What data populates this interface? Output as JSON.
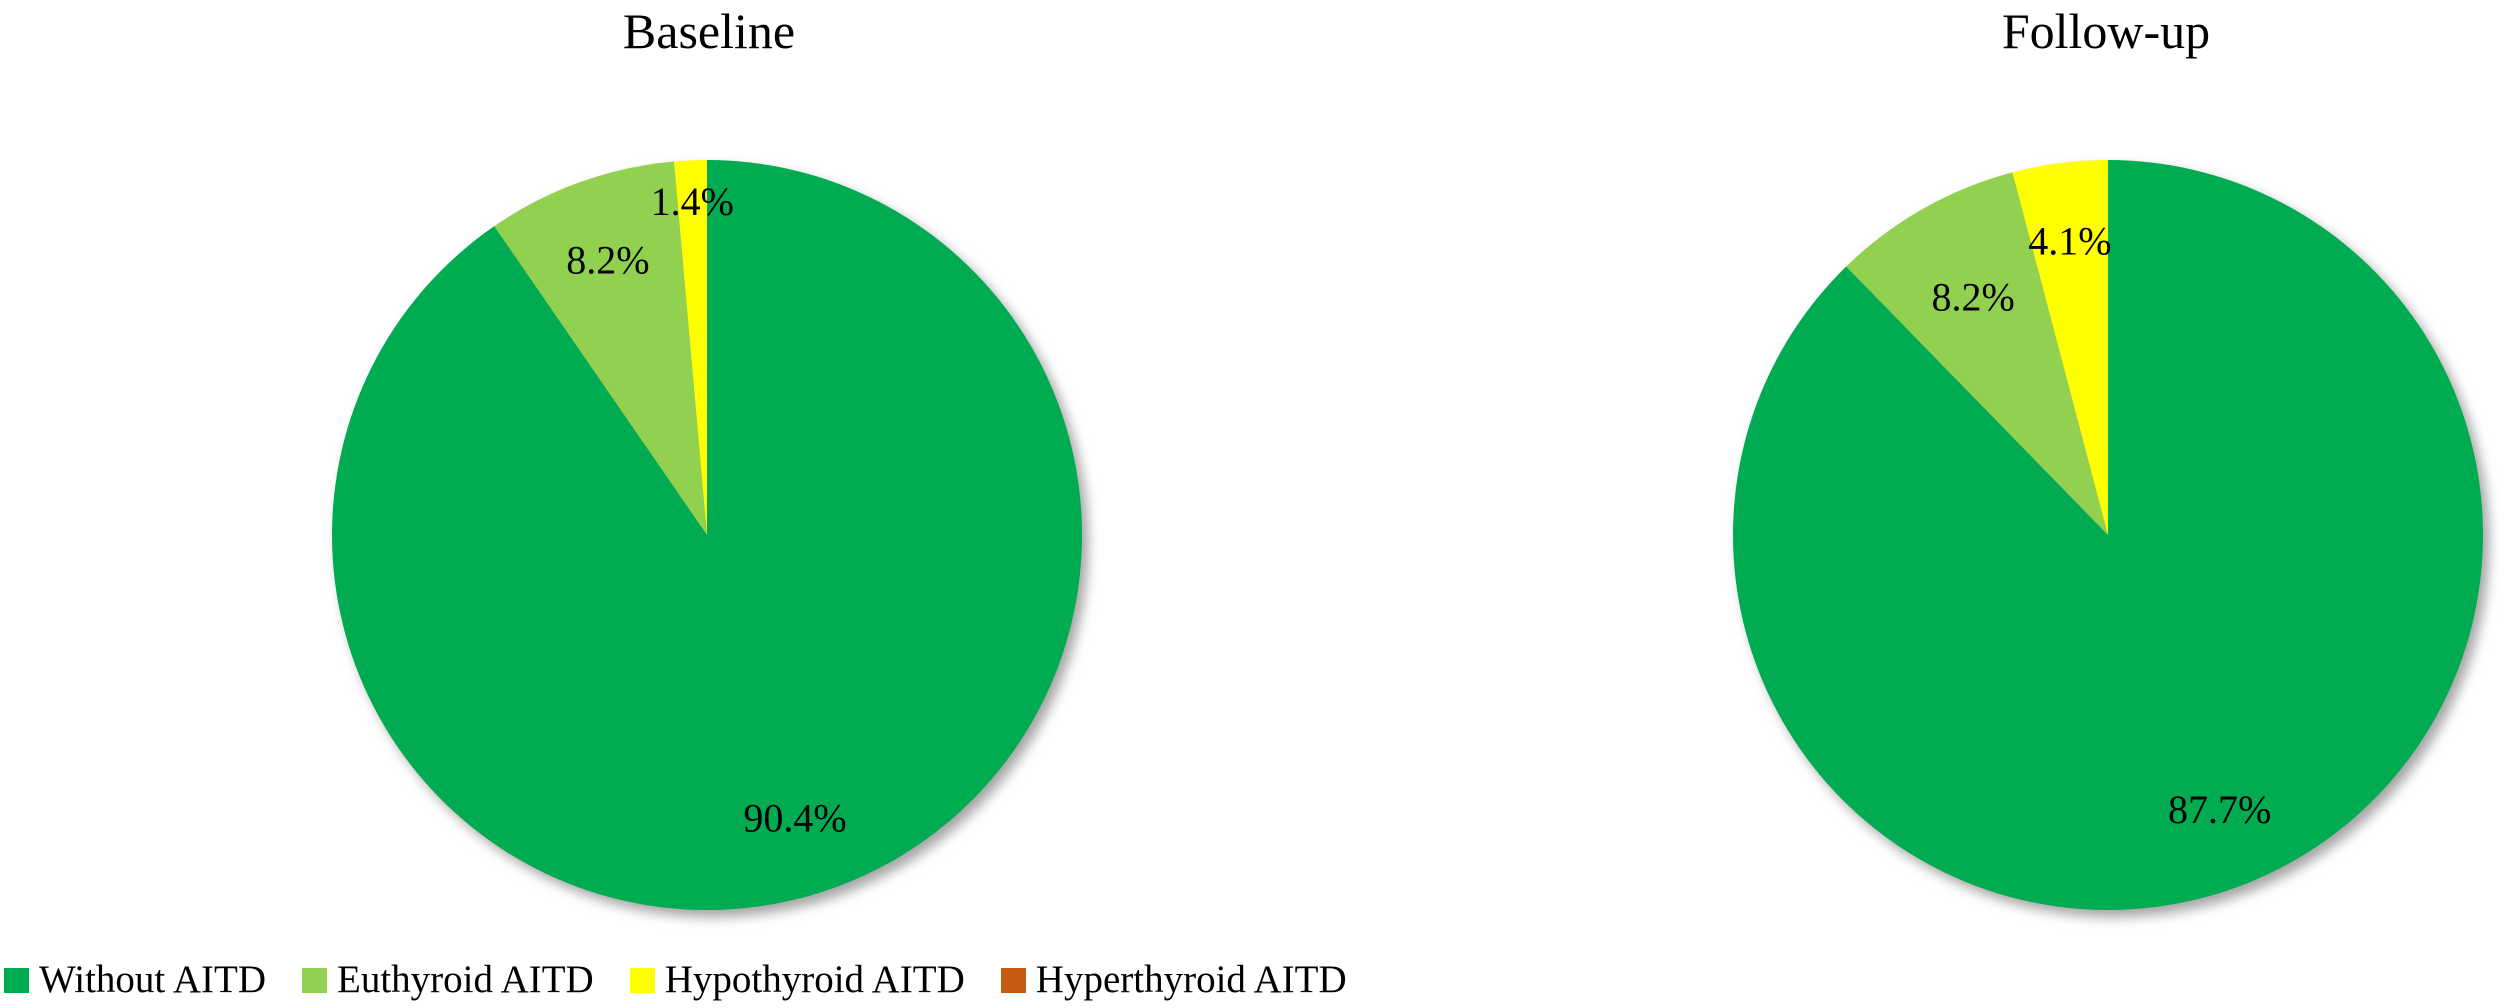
{
  "figure": {
    "background": "#ffffff",
    "text_color": "#000000"
  },
  "chart_data": [
    {
      "type": "pie",
      "title": "Baseline",
      "categories": [
        "Without AITD",
        "Euthyroid AITD",
        "Hypothyroid AITD",
        "Hyperthyroid AITD"
      ],
      "values": [
        90.4,
        8.2,
        1.4,
        0
      ],
      "labels": [
        "90.4%",
        "8.2%",
        "1.4%",
        ""
      ],
      "colors": [
        "#00AB51",
        "#92D050",
        "#FFFF00",
        "#C55A11"
      ],
      "start_angle_deg": 0,
      "direction": "clockwise",
      "label_radius_frac": [
        0.79,
        0.78,
        0.89,
        0.78
      ],
      "legend_position": "bottom-left",
      "grid": false
    },
    {
      "type": "pie",
      "title": "Follow-up",
      "categories": [
        "Without AITD",
        "Euthyroid AITD",
        "Hypothyroid AITD",
        "Hyperthyroid AITD"
      ],
      "values": [
        87.7,
        8.2,
        4.1,
        0
      ],
      "labels": [
        "87.7%",
        "8.2%",
        "4.1%",
        ""
      ],
      "colors": [
        "#00AB51",
        "#92D050",
        "#FFFF00",
        "#C55A11"
      ],
      "start_angle_deg": 0,
      "direction": "clockwise",
      "label_radius_frac": [
        0.79,
        0.73,
        0.79,
        0.78
      ],
      "legend_position": "bottom-left",
      "grid": false
    }
  ],
  "legend": {
    "items": [
      {
        "label": "Without AITD",
        "color": "#00AB51"
      },
      {
        "label": "Euthyroid AITD",
        "color": "#92D050"
      },
      {
        "label": "Hypothyroid AITD",
        "color": "#FFFF00"
      },
      {
        "label": "Hyperthyroid AITD",
        "color": "#C55A11"
      }
    ]
  }
}
